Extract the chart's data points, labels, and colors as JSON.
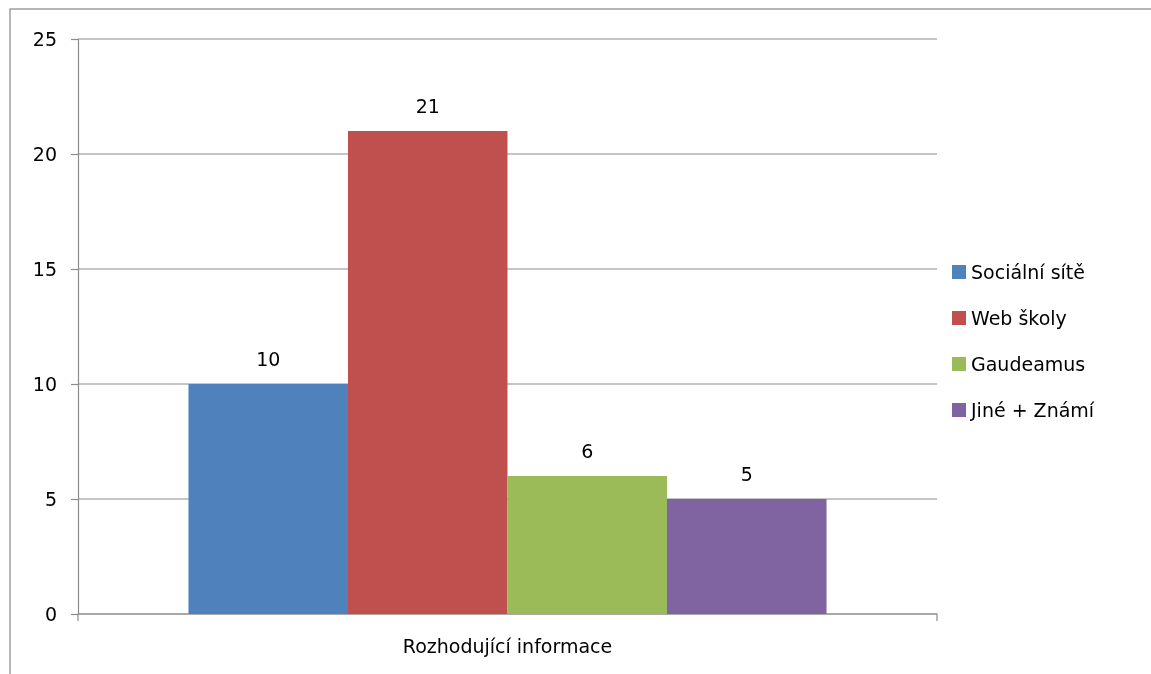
{
  "chart_data": {
    "type": "bar",
    "categories": [
      "Rozhodující informace"
    ],
    "series": [
      {
        "name": "Sociální sítě",
        "color": "#4f81bd",
        "values": [
          10
        ]
      },
      {
        "name": "Web školy",
        "color": "#c0504d",
        "values": [
          21
        ]
      },
      {
        "name": "Gaudeamus",
        "color": "#9bbb59",
        "values": [
          6
        ]
      },
      {
        "name": "Jiné + Známí",
        "color": "#8064a2",
        "values": [
          5
        ]
      }
    ],
    "ylim": [
      0,
      25
    ],
    "yticks": [
      0,
      5,
      10,
      15,
      20,
      25
    ],
    "grid": "y",
    "legend": "right",
    "data_labels": true
  }
}
